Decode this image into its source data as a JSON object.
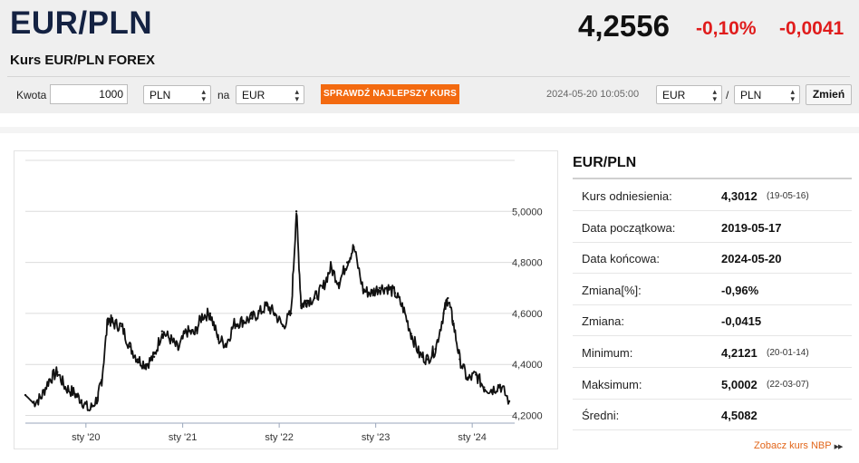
{
  "header": {
    "title": "EUR/PLN",
    "subtitle": "Kurs EUR/PLN FOREX",
    "rate": "4,2556",
    "change_pct": "-0,10%",
    "change_abs": "-0,0041",
    "change_color": "#e01c1c"
  },
  "converter": {
    "amount_label": "Kwota",
    "amount_value": "1000",
    "from_currency": "PLN",
    "connector": "na",
    "to_currency": "EUR",
    "cta_label": "SPRAWDŹ NAJLEPSZY KURS",
    "cta_color": "#f36a10"
  },
  "pair_selector": {
    "timestamp": "2024-05-20 10:05:00",
    "base": "EUR",
    "slash": "/",
    "quote": "PLN",
    "change_button": "Zmień"
  },
  "chart_data": {
    "type": "line",
    "title": "",
    "xlabel": "",
    "ylabel": "",
    "ylim": [
      4.17,
      5.2
    ],
    "x_ticks": [
      "sty '20",
      "sty '21",
      "sty '22",
      "sty '23",
      "sty '24"
    ],
    "y_ticks": [
      "4,2000",
      "4,4000",
      "4,6000",
      "4,8000",
      "5,0000"
    ],
    "grid": "horizontal",
    "series": [
      {
        "x": [
          "2019-05-17",
          "2019-06-15",
          "2019-07-15",
          "2019-08-15",
          "2019-09-15",
          "2019-10-15",
          "2019-11-15",
          "2019-12-15",
          "2020-01-14",
          "2020-02-15",
          "2020-03-01",
          "2020-03-24",
          "2020-04-15",
          "2020-05-15",
          "2020-06-15",
          "2020-07-15",
          "2020-08-15",
          "2020-09-15",
          "2020-10-15",
          "2020-11-15",
          "2020-12-15",
          "2021-01-15",
          "2021-02-15",
          "2021-03-15",
          "2021-04-15",
          "2021-05-15",
          "2021-06-15",
          "2021-07-15",
          "2021-08-15",
          "2021-09-15",
          "2021-10-15",
          "2021-11-15",
          "2021-12-15",
          "2022-01-15",
          "2022-02-15",
          "2022-03-07",
          "2022-03-25",
          "2022-04-15",
          "2022-05-15",
          "2022-06-15",
          "2022-07-15",
          "2022-08-15",
          "2022-09-15",
          "2022-10-10",
          "2022-11-15",
          "2022-12-15",
          "2023-01-15",
          "2023-02-15",
          "2023-03-15",
          "2023-04-15",
          "2023-05-15",
          "2023-06-15",
          "2023-07-15",
          "2023-08-15",
          "2023-09-15",
          "2023-10-01",
          "2023-10-20",
          "2023-11-15",
          "2023-12-15",
          "2024-01-15",
          "2024-02-15",
          "2024-03-15",
          "2024-04-15",
          "2024-05-20"
        ],
        "values": [
          4.28,
          4.25,
          4.27,
          4.34,
          4.37,
          4.31,
          4.29,
          4.26,
          4.22,
          4.27,
          4.34,
          4.58,
          4.56,
          4.55,
          4.47,
          4.42,
          4.4,
          4.43,
          4.53,
          4.5,
          4.46,
          4.53,
          4.52,
          4.59,
          4.6,
          4.5,
          4.48,
          4.56,
          4.57,
          4.58,
          4.6,
          4.63,
          4.6,
          4.55,
          4.6,
          5.0,
          4.63,
          4.65,
          4.66,
          4.7,
          4.78,
          4.72,
          4.8,
          4.86,
          4.69,
          4.68,
          4.7,
          4.7,
          4.68,
          4.62,
          4.52,
          4.44,
          4.42,
          4.46,
          4.6,
          4.66,
          4.57,
          4.42,
          4.34,
          4.36,
          4.31,
          4.3,
          4.32,
          4.256
        ]
      }
    ]
  },
  "stats": {
    "title": "EUR/PLN",
    "rows": [
      {
        "label": "Kurs odniesienia:",
        "value": "4,3012",
        "date": "(19-05-16)"
      },
      {
        "label": "Data początkowa:",
        "value": "2019-05-17",
        "date": ""
      },
      {
        "label": "Data końcowa:",
        "value": "2024-05-20",
        "date": ""
      },
      {
        "label": "Zmiana[%]:",
        "value": "-0,96%",
        "date": ""
      },
      {
        "label": "Zmiana:",
        "value": "-0,0415",
        "date": ""
      },
      {
        "label": "Minimum:",
        "value": "4,2121",
        "date": "(20-01-14)"
      },
      {
        "label": "Maksimum:",
        "value": "5,0002",
        "date": "(22-03-07)"
      },
      {
        "label": "Średni:",
        "value": "4,5082",
        "date": ""
      }
    ],
    "nbp_link": "Zobacz kurs NBP",
    "nbp_icon": "double-triangle-right-icon"
  }
}
